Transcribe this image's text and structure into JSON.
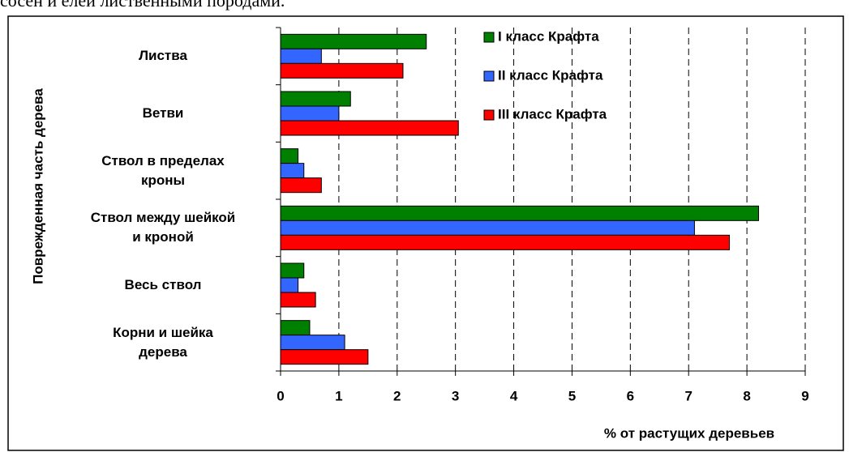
{
  "caption": "сосен и елей лиственными породами.",
  "chart_data": {
    "type": "hbar",
    "x_label": "% от растущих деревьев",
    "y_label": "Поврежденная часть дерева",
    "categories": [
      "Листва",
      "Ветви",
      "Ствол в пределах\nкроны",
      "Ствол между шейкой\nи кроной",
      "Весь ствол",
      "Корни и шейка\nдерева"
    ],
    "series": [
      {
        "name": "I класс Крафта",
        "color": "#008000",
        "values": [
          2.5,
          1.2,
          0.3,
          8.2,
          0.4,
          0.5
        ]
      },
      {
        "name": "II класс Крафта",
        "color": "#3366ff",
        "values": [
          0.7,
          1.0,
          0.4,
          7.1,
          0.3,
          1.1
        ]
      },
      {
        "name": "III класс Крафта",
        "color": "#ff0000",
        "values": [
          2.1,
          3.05,
          0.7,
          7.7,
          0.6,
          1.5
        ]
      }
    ],
    "xlim": [
      0,
      9
    ],
    "xticks": [
      0,
      1,
      2,
      3,
      4,
      5,
      6,
      7,
      8,
      9
    ],
    "grid": true,
    "legend": "top-right"
  }
}
